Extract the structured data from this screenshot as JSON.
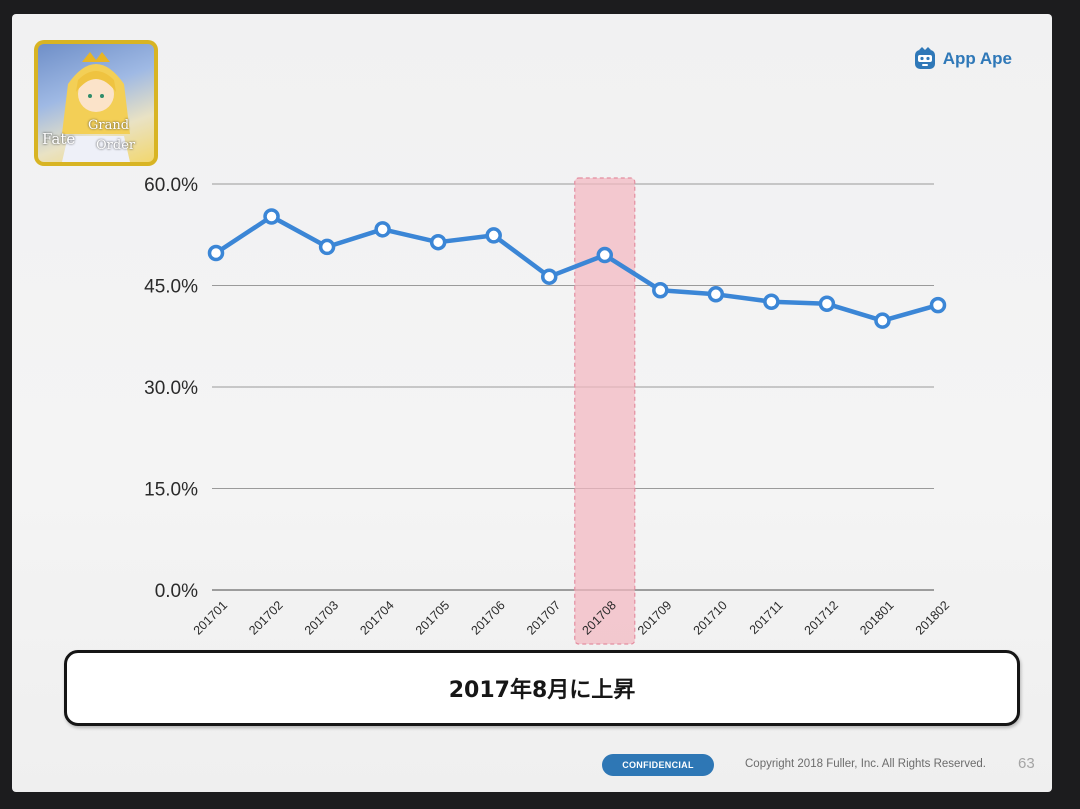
{
  "brand": {
    "name": "App Ape",
    "icon": "app-ape-logo-icon"
  },
  "app_icon": {
    "title_line1": "Fate",
    "title_line2": "Grand",
    "title_line3": "Order"
  },
  "chart_data": {
    "type": "line",
    "title": "",
    "xlabel": "",
    "ylabel": "",
    "categories": [
      "201701",
      "201702",
      "201703",
      "201704",
      "201705",
      "201706",
      "201707",
      "201708",
      "201709",
      "201710",
      "201711",
      "201712",
      "201801",
      "201802"
    ],
    "series": [
      {
        "values": [
          49.8,
          55.2,
          50.7,
          53.3,
          51.4,
          52.4,
          46.3,
          49.5,
          44.3,
          43.7,
          42.6,
          42.3,
          39.8,
          42.1
        ],
        "color": "#3b86d6"
      }
    ],
    "ylim": [
      0,
      60
    ],
    "yticks": [
      "0.0%",
      "15.0%",
      "30.0%",
      "45.0%",
      "60.0%"
    ],
    "ytick_values": [
      0,
      15,
      30,
      45,
      60
    ],
    "grid": true,
    "highlight_category": "201708",
    "highlight_color": "#f2b7c1"
  },
  "callout": {
    "text": "2017年8月に上昇"
  },
  "footer": {
    "badge": "CONFIDENCIAL",
    "copyright": "Copyright 2018 Fuller, Inc. All Rights Reserved.",
    "page": "63"
  }
}
